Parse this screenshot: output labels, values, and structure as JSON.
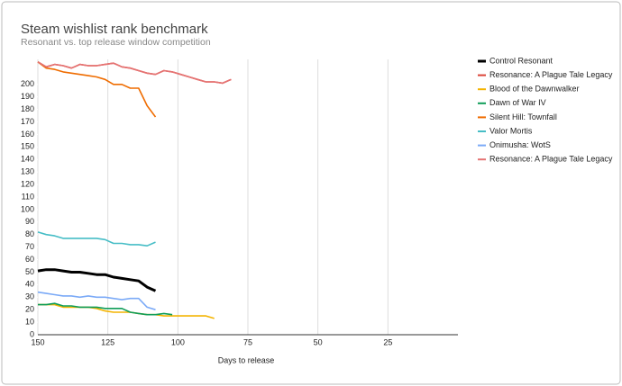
{
  "chart_data": {
    "type": "line",
    "title": "Steam wishlist rank benchmark",
    "subtitle": "Resonant vs. top release window competition",
    "x_label": "Days to release",
    "x": [
      150,
      147,
      144,
      141,
      138,
      135,
      132,
      129,
      126,
      123,
      120,
      117,
      114,
      111,
      108,
      105,
      102,
      99,
      96,
      93,
      90,
      87,
      84,
      81
    ],
    "xlim": [
      150,
      0
    ],
    "xticks": [
      150,
      125,
      100,
      75,
      50,
      25
    ],
    "ylim": [
      0,
      220
    ],
    "yticks": [
      0,
      10,
      20,
      30,
      40,
      50,
      60,
      70,
      80,
      90,
      100,
      110,
      120,
      130,
      140,
      150,
      160,
      170,
      180,
      190,
      200
    ],
    "grid": true,
    "legend": "right",
    "series": [
      {
        "name": "Control Resonant",
        "color": "#000000",
        "values": [
          51,
          52,
          52,
          51,
          50,
          50,
          49,
          48,
          48,
          46,
          45,
          44,
          43,
          38,
          35,
          null,
          null,
          null,
          null,
          null,
          null,
          null,
          null,
          null
        ]
      },
      {
        "name": "Resonance: A Plague Tale Legacy",
        "color": "#db4437",
        "values": [
          218,
          214,
          216,
          215,
          213,
          216,
          215,
          215,
          216,
          217,
          214,
          213,
          211,
          209,
          208,
          211,
          210,
          208,
          206,
          204,
          202,
          202,
          201,
          204
        ]
      },
      {
        "name": "Blood of the Dawnwalker",
        "color": "#f4b400",
        "values": [
          24,
          24,
          24,
          22,
          22,
          22,
          22,
          21,
          19,
          18,
          18,
          18,
          17,
          16,
          16,
          15,
          15,
          15,
          15,
          15,
          15,
          13,
          null,
          null
        ]
      },
      {
        "name": "Dawn of War IV",
        "color": "#0f9d58",
        "values": [
          24,
          24,
          25,
          23,
          23,
          22,
          22,
          22,
          21,
          21,
          21,
          18,
          17,
          16,
          16,
          17,
          16,
          null,
          null,
          null,
          null,
          null,
          null,
          null
        ]
      },
      {
        "name": "Silent Hill: Townfall",
        "color": "#ef6c00",
        "values": [
          218,
          213,
          212,
          210,
          209,
          208,
          207,
          206,
          204,
          200,
          200,
          197,
          197,
          183,
          174,
          null,
          null,
          null,
          null,
          null,
          null,
          null,
          null,
          null
        ]
      },
      {
        "name": "Valor Mortis",
        "color": "#46bdc6",
        "values": [
          82,
          80,
          79,
          77,
          77,
          77,
          77,
          77,
          76,
          73,
          73,
          72,
          72,
          71,
          74,
          null,
          null,
          null,
          null,
          null,
          null,
          null,
          null,
          null
        ]
      },
      {
        "name": "Onimusha: WotS",
        "color": "#7baaf7",
        "values": [
          34,
          33,
          32,
          31,
          31,
          30,
          31,
          30,
          30,
          29,
          28,
          29,
          29,
          22,
          20,
          null,
          null,
          null,
          null,
          null,
          null,
          null,
          null,
          null
        ]
      },
      {
        "name": "Resonance: A Plague Tale Legacy",
        "color": "#e57373",
        "values": [
          218,
          214,
          216,
          215,
          213,
          216,
          215,
          215,
          216,
          217,
          214,
          213,
          211,
          209,
          208,
          211,
          210,
          208,
          206,
          204,
          202,
          202,
          201,
          204
        ]
      }
    ]
  }
}
